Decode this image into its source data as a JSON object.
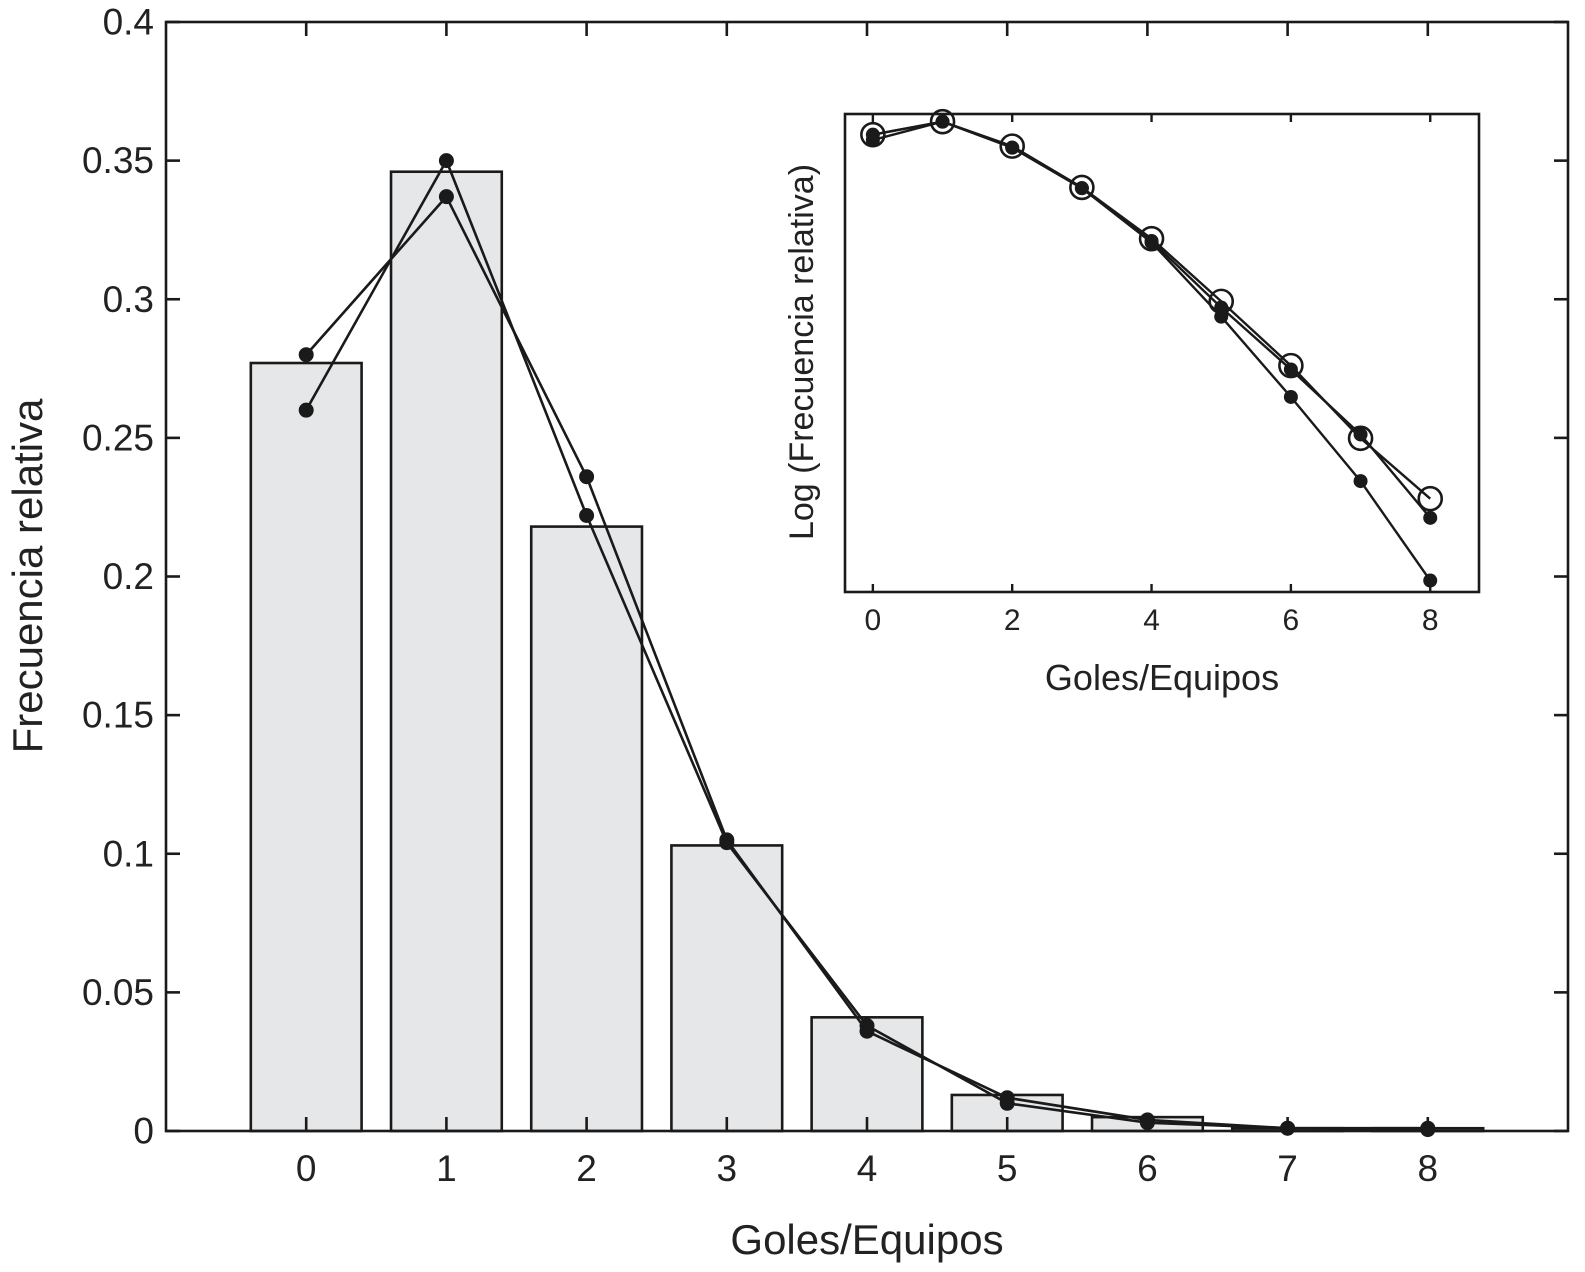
{
  "chart_data": [
    {
      "type": "bar",
      "xlabel": "Goles/Equipos",
      "ylabel": "Frecuencia relativa",
      "x_ticks": [
        "0",
        "1",
        "2",
        "3",
        "4",
        "5",
        "6",
        "7",
        "8"
      ],
      "y_ticks": [
        "0",
        "0.05",
        "0.1",
        "0.15",
        "0.2",
        "0.25",
        "0.3",
        "0.35",
        "0.4"
      ],
      "xlim": [
        -1.0,
        9.0
      ],
      "ylim": [
        0,
        0.4
      ],
      "grid": false,
      "categories": [
        0,
        1,
        2,
        3,
        4,
        5,
        6,
        7,
        8
      ],
      "bars": [
        0.277,
        0.346,
        0.218,
        0.103,
        0.041,
        0.013,
        0.005,
        0.001,
        0.001
      ],
      "series": [
        {
          "style": "line-dot",
          "x": [
            0,
            1,
            2,
            3,
            4,
            5,
            6,
            7,
            8
          ],
          "values": [
            0.28,
            0.337,
            0.236,
            0.105,
            0.036,
            0.012,
            0.004,
            0.001,
            0.001
          ]
        },
        {
          "style": "line-dot",
          "x": [
            0,
            1,
            2,
            3,
            4,
            5,
            6,
            7,
            8
          ],
          "values": [
            0.26,
            0.35,
            0.222,
            0.104,
            0.038,
            0.01,
            0.003,
            0.001,
            0.0005
          ]
        }
      ]
    },
    {
      "type": "line",
      "inset": true,
      "xlabel": "Goles/Equipos",
      "ylabel": "Log (Frecuencia relativa)",
      "x_ticks": [
        "0",
        "2",
        "4",
        "6",
        "8"
      ],
      "xlim": [
        -0.4,
        8.7
      ],
      "ylim": [
        -6.15,
        0.1
      ],
      "log_scale": true,
      "series": [
        {
          "style": "open-circle",
          "x": [
            0,
            1,
            2,
            3,
            4,
            5,
            6,
            7,
            8
          ],
          "values": [
            -0.17,
            0.0,
            -0.32,
            -0.86,
            -1.53,
            -2.35,
            -3.19,
            -4.14,
            -4.93
          ]
        },
        {
          "style": "dot",
          "x": [
            0,
            1,
            2,
            3,
            4,
            5,
            6,
            7,
            8
          ],
          "values": [
            -0.17,
            0.0,
            -0.34,
            -0.87,
            -1.56,
            -2.43,
            -3.24,
            -4.09,
            -5.18
          ]
        },
        {
          "style": "dot",
          "x": [
            0,
            1,
            2,
            3,
            4,
            5,
            6,
            7,
            8
          ],
          "values": [
            -0.24,
            0.0,
            -0.34,
            -0.87,
            -1.58,
            -2.55,
            -3.6,
            -4.7,
            -6.0
          ]
        }
      ]
    }
  ]
}
